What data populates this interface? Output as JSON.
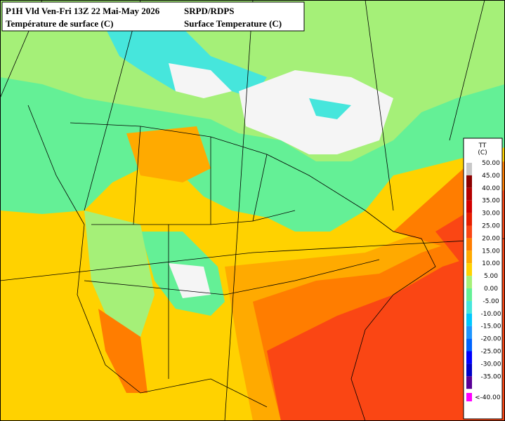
{
  "header": {
    "line1_left": "P1H Vld Ven-Fri 13Z 22 Mai-May 2026",
    "line1_right": "SRPD/RDPS",
    "line2_left": "Température de surface (C)",
    "line2_right": "Surface Temperature (C)"
  },
  "legend": {
    "title": "TT",
    "unit": "(C)",
    "entries": [
      {
        "label": "50.00",
        "color": "#c8c8c8"
      },
      {
        "label": "45.00",
        "color": "#8c0000"
      },
      {
        "label": "40.00",
        "color": "#b40000"
      },
      {
        "label": "35.00",
        "color": "#d20000"
      },
      {
        "label": "30.00",
        "color": "#e61e00"
      },
      {
        "label": "25.00",
        "color": "#fa4614"
      },
      {
        "label": "20.00",
        "color": "#ff7d00"
      },
      {
        "label": "15.00",
        "color": "#ffaa00"
      },
      {
        "label": "10.00",
        "color": "#ffd200"
      },
      {
        "label": "5.00",
        "color": "#a5f078"
      },
      {
        "label": "0.00",
        "color": "#64f096"
      },
      {
        "label": "-5.00",
        "color": "#46e6dc"
      },
      {
        "label": "-10.00",
        "color": "#00c8ff"
      },
      {
        "label": "-15.00",
        "color": "#1e96ff"
      },
      {
        "label": "-20.00",
        "color": "#0064ff"
      },
      {
        "label": "-25.00",
        "color": "#0000ff"
      },
      {
        "label": "-30.00",
        "color": "#0000c8"
      },
      {
        "label": "-35.00",
        "color": "#5a0096"
      },
      {
        "label": "<-40.00",
        "color": "#ff00ff"
      }
    ]
  }
}
